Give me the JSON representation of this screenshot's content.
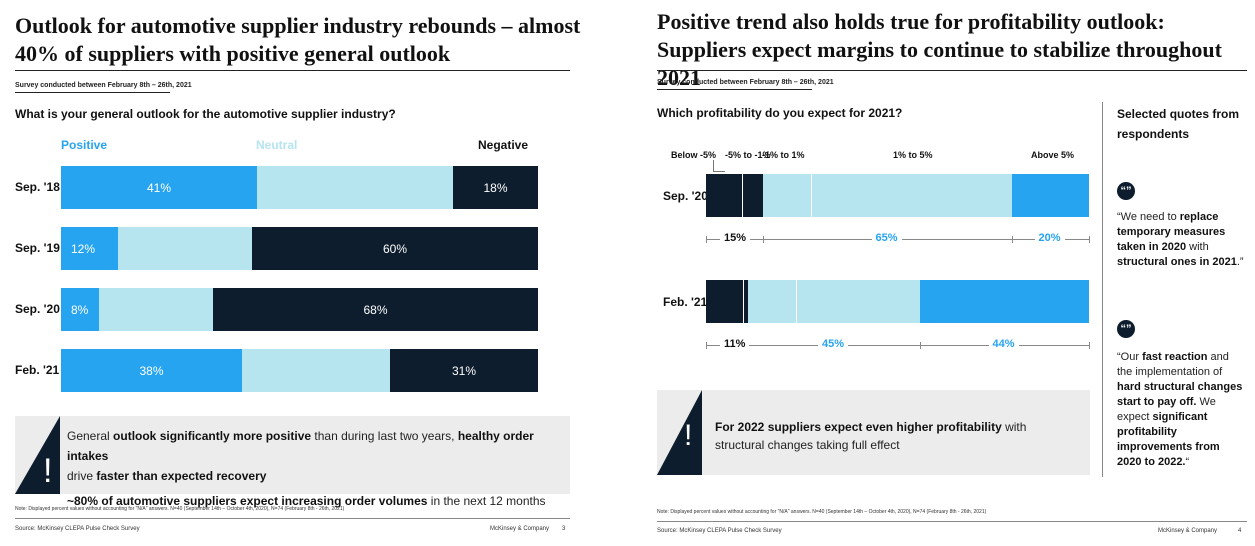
{
  "left": {
    "title": "Outlook for automotive supplier industry rebounds – almost 40% of suppliers with positive general outlook",
    "survey": "Survey conducted between February 8th – 26th, 2021",
    "question": "What is your general outlook for the automotive supplier industry?",
    "headers": {
      "positive": "Positive",
      "neutral": "Neutral",
      "negative": "Negative"
    },
    "chart_data": {
      "type": "bar",
      "categories": [
        "Sep. '18",
        "Sep. '19",
        "Sep. '20",
        "Feb. '21"
      ],
      "series": [
        {
          "name": "Positive",
          "values": [
            41,
            12,
            8,
            38
          ]
        },
        {
          "name": "Neutral",
          "values": [
            41,
            28,
            24,
            31
          ]
        },
        {
          "name": "Negative",
          "values": [
            18,
            60,
            68,
            31
          ]
        }
      ],
      "labels": {
        "positive": [
          "41%",
          "12%",
          "8%",
          "38%"
        ],
        "negative": [
          "18%",
          "60%",
          "68%",
          "31%"
        ]
      },
      "colors": {
        "positive": "#27a4f0",
        "neutral": "#b6e4ef",
        "negative": "#0d1d2d"
      }
    },
    "callout": {
      "line1_a": "General ",
      "line1_b": "outlook significantly more positive",
      "line1_c": " than during last two years, ",
      "line1_d": "healthy order intakes",
      "line2_a": "drive ",
      "line2_b": "faster than expected recovery",
      "line3_a": "~80% of automotive suppliers expect increasing order volumes",
      "line3_b": " in the next 12 months",
      "mark": "!"
    },
    "note": "Note: Displayed percent values without accounting for \"N/A\" answers. N=40 (September 14th – October 4th, 2020), N=74 (February 8th - 26th, 2021)",
    "source": "Source: McKinsey CLEPA Pulse Check Survey",
    "brand": "McKinsey & Company",
    "page": "3"
  },
  "right": {
    "title": "Positive trend also holds true for profitability outlook: Suppliers expect margins to continue to stabilize throughout 2021",
    "survey": "Survey conducted between February 8th – 26th, 2021",
    "question": "Which profitability do you expect for 2021?",
    "col_headers": [
      "Below -5%",
      "-5% to -1%",
      "-1% to 1%",
      "1% to 5%",
      "Above 5%"
    ],
    "chart_data": {
      "type": "bar",
      "categories": [
        "Sep. '20",
        "Feb. '21"
      ],
      "series": [
        {
          "name": "Below -5% to -1%",
          "values": [
            15,
            11
          ]
        },
        {
          "name": "-1% to 5%",
          "values": [
            65,
            45
          ]
        },
        {
          "name": "Above 5%",
          "values": [
            20,
            44
          ]
        }
      ],
      "labels": [
        [
          "15%",
          "65%",
          "20%"
        ],
        [
          "11%",
          "45%",
          "44%"
        ]
      ],
      "colors": {
        "negative": "#0d1d2d",
        "neutral": "#b6e4ef",
        "positive": "#27a4f0"
      }
    },
    "callout": {
      "bold": "For 2022 suppliers expect even higher profitability",
      "rest": " with structural changes taking full effect",
      "mark": "!"
    },
    "quotes_header": "Selected quotes from respondents",
    "quote_icon": "“”",
    "quote1": {
      "a": "“We need to ",
      "b": "replace temporary measures taken in 2020",
      "c": " with ",
      "d": "structural ones in 2021",
      "e": ".”"
    },
    "quote2": {
      "a": "“Our ",
      "b": "fast reaction",
      "c": " and the implementation of ",
      "d": "hard structural changes start to pay off.",
      "e": " We expect ",
      "f": "significant profitability improvements from 2020 to 2022.",
      "g": "“"
    },
    "note": "Note: Displayed percent values without accounting for \"N/A\" answers. N=40 (September 14th – October 4th, 2020), N=74 (February 8th - 26th, 2021)",
    "source": "Source: McKinsey CLEPA Pulse Check Survey",
    "brand": "McKinsey & Company",
    "page": "4"
  }
}
